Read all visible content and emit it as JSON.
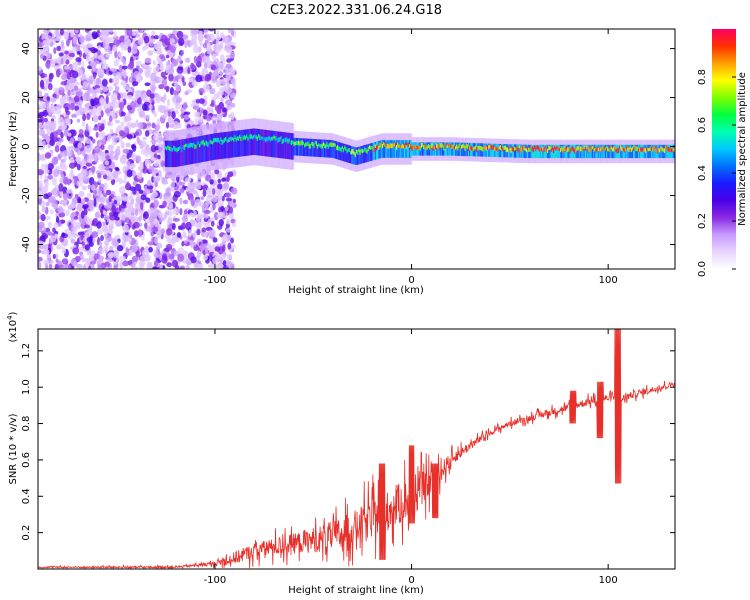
{
  "figure": {
    "title": "C2E3.2022.331.06.24.G18"
  },
  "chart_data": [
    {
      "type": "heatmap",
      "xlabel": "Height of straight line (km)",
      "ylabel": "Frequency (Hz)",
      "xlim": [
        -190,
        134
      ],
      "ylim": [
        -50,
        48
      ],
      "x_ticks": [
        -100,
        0,
        100
      ],
      "y_ticks": [
        -40,
        -20,
        0,
        20,
        40
      ],
      "colorbar": {
        "label": "Normalized spectral amplitude",
        "range": [
          0,
          1
        ],
        "ticks": [
          0.0,
          0.2,
          0.4,
          0.6,
          0.8
        ],
        "tick_labels": [
          "0.0",
          "0.2",
          "0.4",
          "0.6",
          "0.8"
        ],
        "colormap": [
          "#ffffff",
          "#e8d5ff",
          "#c89bff",
          "#8a2be2",
          "#4a00e8",
          "#1a1aff",
          "#0070ff",
          "#00c8ff",
          "#00ffb0",
          "#00ff40",
          "#7fff00",
          "#ffff00",
          "#ffa000",
          "#ff3000",
          "#ff0060"
        ]
      },
      "ridge": {
        "description_points": [
          {
            "x": -120,
            "y": -3
          },
          {
            "x": -100,
            "y": 0
          },
          {
            "x": -80,
            "y": 2
          },
          {
            "x": -60,
            "y": 0
          },
          {
            "x": -40,
            "y": -1
          },
          {
            "x": -28,
            "y": -4
          },
          {
            "x": -15,
            "y": -1
          },
          {
            "x": 0,
            "y": -1
          },
          {
            "x": 20,
            "y": -1
          },
          {
            "x": 60,
            "y": -2
          },
          {
            "x": 100,
            "y": -2
          },
          {
            "x": 134,
            "y": -2
          }
        ]
      }
    },
    {
      "type": "line",
      "xlabel": "Height of straight line (km)",
      "ylabel": "SNR (10 * v/v)",
      "scale_label": "(x10",
      "scale_exponent": "4",
      "scale_suffix": ")",
      "xlim": [
        -190,
        134
      ],
      "ylim": [
        0,
        1.32
      ],
      "x_ticks": [
        -100,
        0,
        100
      ],
      "y_ticks": [
        0.2,
        0.4,
        0.6,
        0.8,
        1.0,
        1.2
      ],
      "y_tick_labels": [
        "0.2",
        "0.4",
        "0.6",
        "0.8",
        "1.0",
        "1.2"
      ],
      "color": "#e8302a",
      "trend": {
        "x": [
          -190,
          -120,
          -100,
          -90,
          -80,
          -60,
          -40,
          -30,
          -20,
          -10,
          0,
          10,
          20,
          30,
          40,
          50,
          60,
          70,
          80,
          90,
          100,
          104,
          106,
          110,
          120,
          134
        ],
        "y": [
          0.01,
          0.01,
          0.03,
          0.06,
          0.1,
          0.14,
          0.18,
          0.22,
          0.28,
          0.33,
          0.4,
          0.48,
          0.6,
          0.68,
          0.75,
          0.8,
          0.83,
          0.86,
          0.89,
          0.92,
          0.94,
          0.94,
          0.93,
          0.95,
          0.98,
          1.02
        ]
      },
      "noise_amplitude": {
        "x": [
          -190,
          -110,
          -100,
          -90,
          -60,
          -40,
          -20,
          0,
          10,
          20,
          40,
          80,
          100,
          134
        ],
        "y": [
          0.005,
          0.008,
          0.02,
          0.05,
          0.08,
          0.12,
          0.15,
          0.17,
          0.1,
          0.05,
          0.02,
          0.03,
          0.03,
          0.02
        ]
      },
      "spikes": [
        {
          "x": 105,
          "y_max": 1.32,
          "y_min": 0.47
        },
        {
          "x": 96,
          "y_max": 1.03,
          "y_min": 0.72
        },
        {
          "x": 82,
          "y_max": 0.98,
          "y_min": 0.8
        },
        {
          "x": 0,
          "y_max": 0.68,
          "y_min": 0.25
        },
        {
          "x": -15,
          "y_max": 0.58,
          "y_min": 0.05
        },
        {
          "x": 12,
          "y_max": 0.58,
          "y_min": 0.28
        }
      ]
    }
  ]
}
